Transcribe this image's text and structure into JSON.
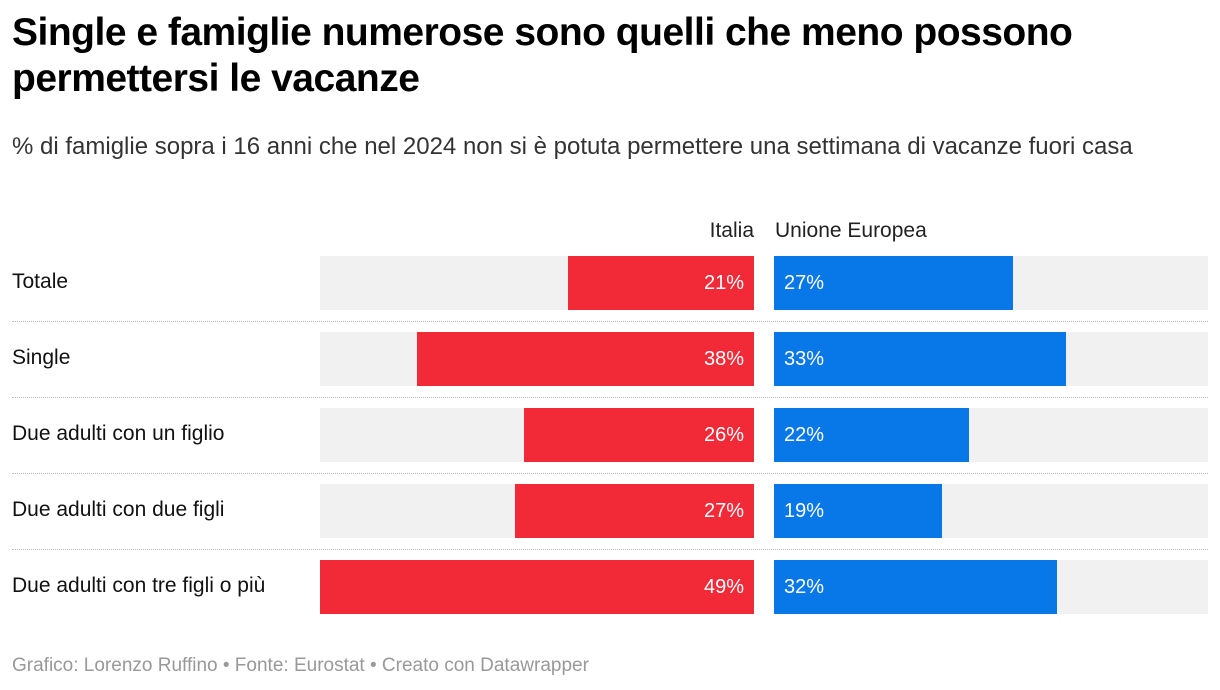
{
  "title": "Single e famiglie numerose sono quelli che meno possono permettersi le vacanze",
  "subtitle": "% di famiglie sopra i 16 anni che nel 2024 non si è potuta permettere una settimana di vacanze fuori casa",
  "footer": "Grafico: Lorenzo Ruffino • Fonte: Eurostat • Creato con Datawrapper",
  "colors": {
    "italia": "#f22a38",
    "ue": "#0878e8",
    "background": "#f1f1f1"
  },
  "chart_data": {
    "type": "bar",
    "categories": [
      "Totale",
      "Single",
      "Due adulti con un figlio",
      "Due adulti con due figli",
      "Due adulti con tre figli o più"
    ],
    "series": [
      {
        "name": "Italia",
        "values": [
          21,
          38,
          26,
          27,
          49
        ],
        "labels": [
          "21%",
          "38%",
          "26%",
          "27%",
          "49%"
        ]
      },
      {
        "name": "Unione Europea",
        "values": [
          27,
          33,
          22,
          19,
          32
        ],
        "labels": [
          "27%",
          "33%",
          "22%",
          "19%",
          "32%"
        ]
      }
    ],
    "xlim": [
      0,
      49
    ]
  }
}
